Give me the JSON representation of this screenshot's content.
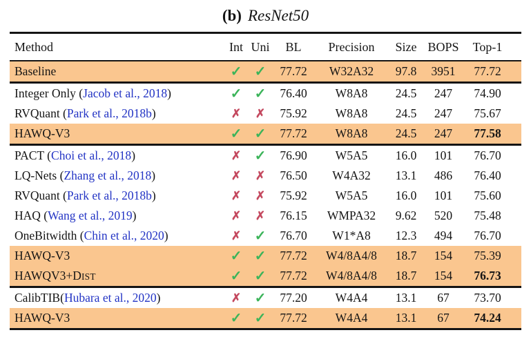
{
  "caption": {
    "label": "(b)",
    "model": "ResNet50"
  },
  "icons": {
    "check": "✓",
    "cross": "✗"
  },
  "colors": {
    "highlight": "#FAC68F",
    "check_green": "#3CB45A",
    "cross_red": "#C4495F",
    "citation_blue": "#2233C4",
    "rule_black": "#141414"
  },
  "table": {
    "columns": [
      "Method",
      "Int",
      "Uni",
      "BL",
      "Precision",
      "Size",
      "BOPS",
      "Top-1"
    ],
    "groups": [
      {
        "rows": [
          {
            "method": [
              {
                "t": "Baseline"
              }
            ],
            "int": "check",
            "uni": "check",
            "bl": "77.72",
            "precision": "W32A32",
            "size": "97.8",
            "bops": "3951",
            "top1": "77.72",
            "top1_bold": false,
            "highlight": true
          }
        ]
      },
      {
        "rows": [
          {
            "method": [
              {
                "t": "Integer Only ("
              },
              {
                "t": "Jacob et al., 2018",
                "link": true
              },
              {
                "t": ")"
              }
            ],
            "int": "check",
            "uni": "check",
            "bl": "76.40",
            "precision": "W8A8",
            "size": "24.5",
            "bops": "247",
            "top1": "74.90",
            "top1_bold": false,
            "highlight": false
          },
          {
            "method": [
              {
                "t": "RVQuant ("
              },
              {
                "t": "Park et al., 2018b",
                "link": true
              },
              {
                "t": ")"
              }
            ],
            "int": "cross",
            "uni": "cross",
            "bl": "75.92",
            "precision": "W8A8",
            "size": "24.5",
            "bops": "247",
            "top1": "75.67",
            "top1_bold": false,
            "highlight": false
          },
          {
            "method": [
              {
                "t": "HAWQ-V3"
              }
            ],
            "int": "check",
            "uni": "check",
            "bl": "77.72",
            "precision": "W8A8",
            "size": "24.5",
            "bops": "247",
            "top1": "77.58",
            "top1_bold": true,
            "highlight": true
          }
        ]
      },
      {
        "rows": [
          {
            "method": [
              {
                "t": "PACT ("
              },
              {
                "t": "Choi et al., 2018",
                "link": true
              },
              {
                "t": ")"
              }
            ],
            "int": "cross",
            "uni": "check",
            "bl": "76.90",
            "precision": "W5A5",
            "size": "16.0",
            "bops": "101",
            "top1": "76.70",
            "top1_bold": false,
            "highlight": false
          },
          {
            "method": [
              {
                "t": "LQ-Nets ("
              },
              {
                "t": "Zhang et al., 2018",
                "link": true
              },
              {
                "t": ")"
              }
            ],
            "int": "cross",
            "uni": "cross",
            "bl": "76.50",
            "precision": "W4A32",
            "size": "13.1",
            "bops": "486",
            "top1": "76.40",
            "top1_bold": false,
            "highlight": false
          },
          {
            "method": [
              {
                "t": "RVQuant ("
              },
              {
                "t": "Park et al., 2018b",
                "link": true
              },
              {
                "t": ")"
              }
            ],
            "int": "cross",
            "uni": "cross",
            "bl": "75.92",
            "precision": "W5A5",
            "size": "16.0",
            "bops": "101",
            "top1": "75.60",
            "top1_bold": false,
            "highlight": false
          },
          {
            "method": [
              {
                "t": "HAQ ("
              },
              {
                "t": "Wang et al., 2019",
                "link": true
              },
              {
                "t": ")"
              }
            ],
            "int": "cross",
            "uni": "cross",
            "bl": "76.15",
            "precision": "WMPA32",
            "size": "9.62",
            "bops": "520",
            "top1": "75.48",
            "top1_bold": false,
            "highlight": false
          },
          {
            "method": [
              {
                "t": "OneBitwidth ("
              },
              {
                "t": "Chin et al., 2020",
                "link": true
              },
              {
                "t": ")"
              }
            ],
            "int": "cross",
            "uni": "check",
            "bl": "76.70",
            "precision": "W1*A8",
            "size": "12.3",
            "bops": "494",
            "top1": "76.70",
            "top1_bold": false,
            "highlight": false
          },
          {
            "method": [
              {
                "t": "HAWQ-V3"
              }
            ],
            "int": "check",
            "uni": "check",
            "bl": "77.72",
            "precision": "W4/8A4/8",
            "size": "18.7",
            "bops": "154",
            "top1": "75.39",
            "top1_bold": false,
            "highlight": true
          },
          {
            "method": [
              {
                "t": "HAWQV3+D"
              },
              {
                "t": "IST",
                "sc": true
              }
            ],
            "int": "check",
            "uni": "check",
            "bl": "77.72",
            "precision": "W4/8A4/8",
            "size": "18.7",
            "bops": "154",
            "top1": "76.73",
            "top1_bold": true,
            "highlight": true
          }
        ]
      },
      {
        "rows": [
          {
            "method": [
              {
                "t": "CalibTIB("
              },
              {
                "t": "Hubara et al., 2020",
                "link": true
              },
              {
                "t": ")"
              }
            ],
            "int": "cross",
            "uni": "check",
            "bl": "77.20",
            "precision": "W4A4",
            "size": "13.1",
            "bops": "67",
            "top1": "73.70",
            "top1_bold": false,
            "highlight": false
          },
          {
            "method": [
              {
                "t": "HAWQ-V3"
              }
            ],
            "int": "check",
            "uni": "check",
            "bl": "77.72",
            "precision": "W4A4",
            "size": "13.1",
            "bops": "67",
            "top1": "74.24",
            "top1_bold": true,
            "highlight": true
          }
        ]
      }
    ]
  }
}
